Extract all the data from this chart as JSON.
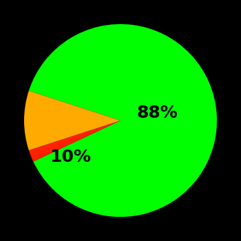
{
  "slices": [
    88,
    2,
    10
  ],
  "colors": [
    "#00ff00",
    "#ff2000",
    "#ffaa00"
  ],
  "labels": [
    "88%",
    "",
    "10%"
  ],
  "background_color": "#000000",
  "label_fontsize": 18,
  "label_fontweight": "bold",
  "startangle": 162,
  "figsize": [
    3.5,
    3.5
  ],
  "dpi": 100
}
